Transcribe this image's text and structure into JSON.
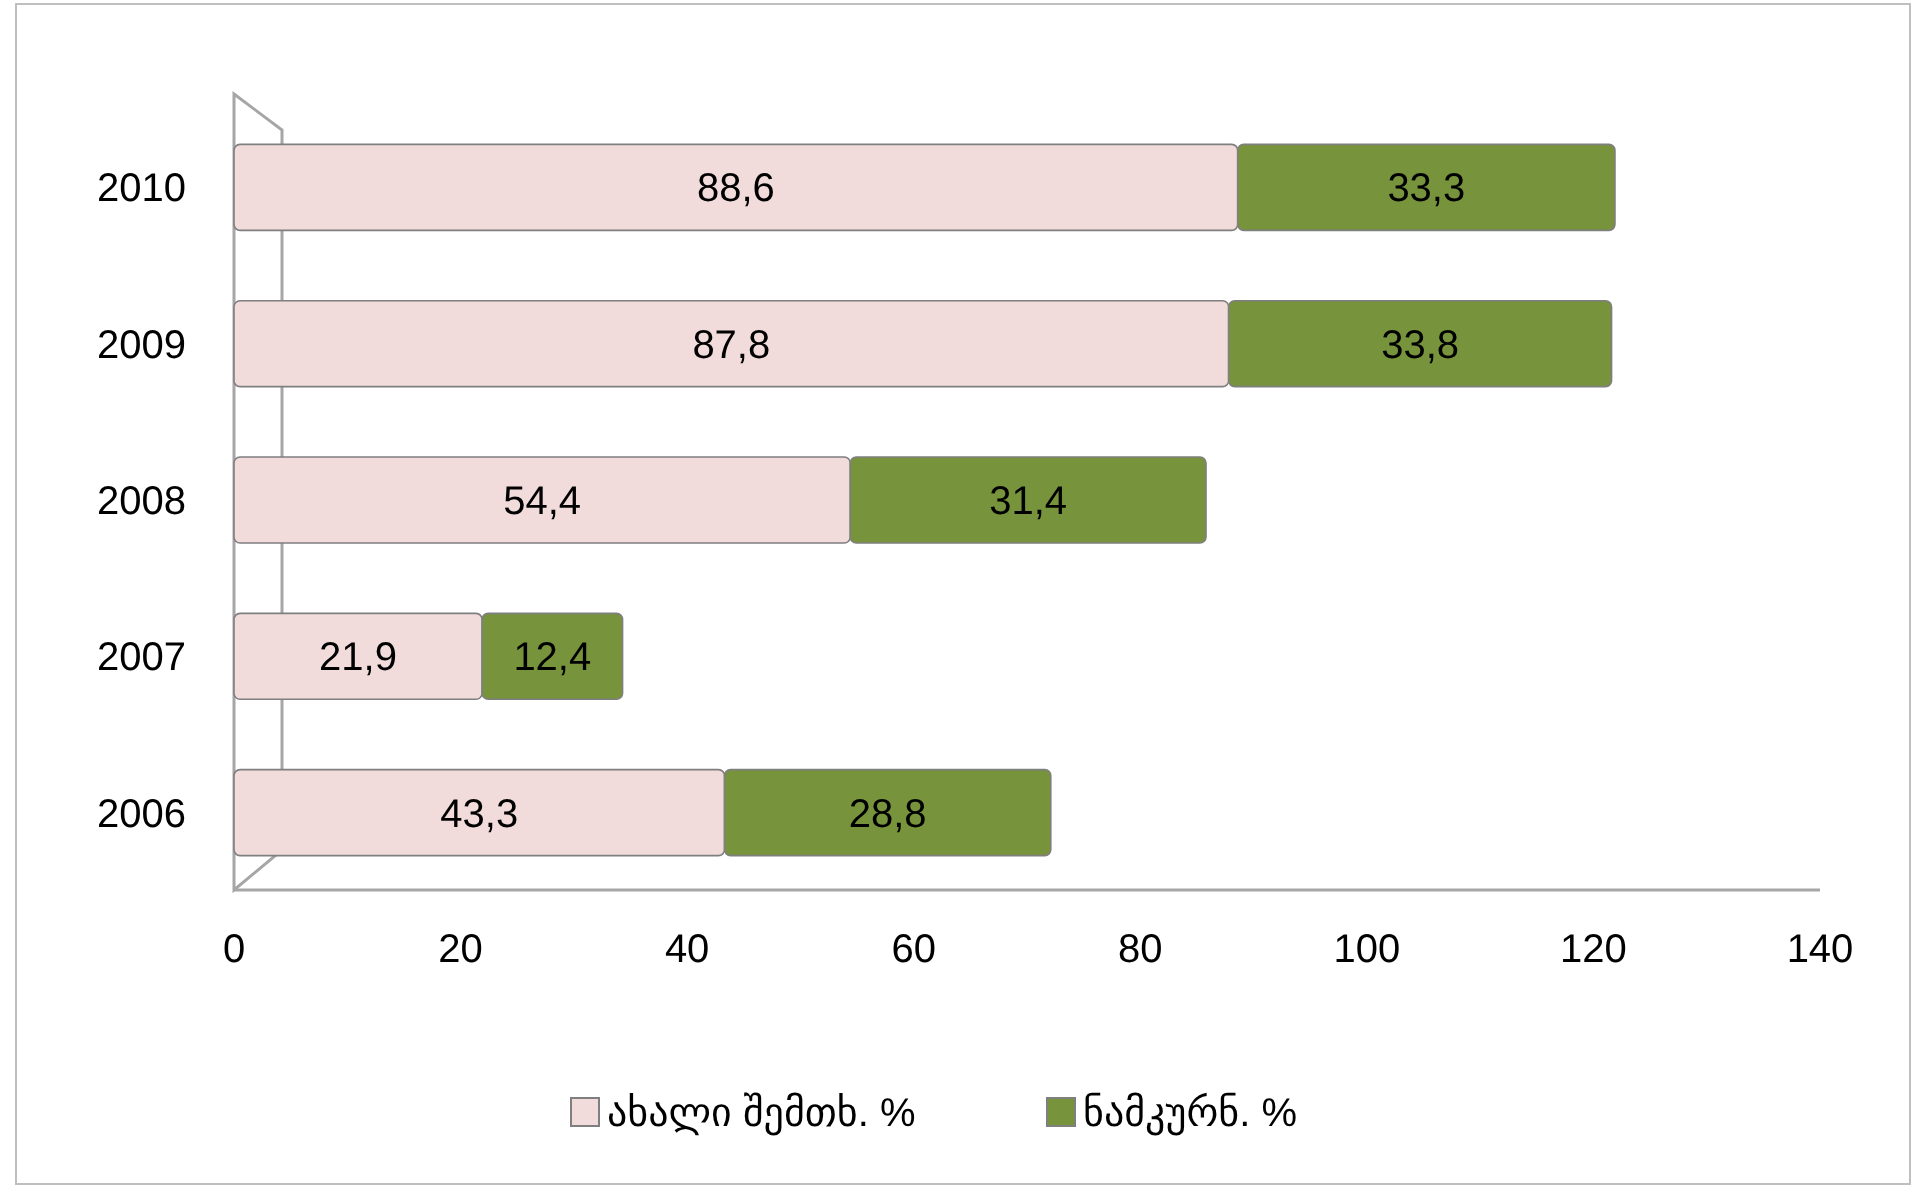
{
  "chart_data": {
    "type": "bar",
    "orientation": "horizontal",
    "stacked": true,
    "categories": [
      "2010",
      "2009",
      "2008",
      "2007",
      "2006"
    ],
    "series": [
      {
        "name": "ახალი შემთხ. %",
        "color": "#f2dcdb",
        "values": [
          88.6,
          87.8,
          54.4,
          21.9,
          43.3
        ],
        "value_labels": [
          "88,6",
          "87,8",
          "54,4",
          "21,9",
          "43,3"
        ]
      },
      {
        "name": "ნამკურნ. %",
        "color": "#77933c",
        "values": [
          33.3,
          33.8,
          31.4,
          12.4,
          28.8
        ],
        "value_labels": [
          "33,3",
          "33,8",
          "31,4",
          "12,4",
          "28,8"
        ]
      }
    ],
    "xlim": [
      0,
      140
    ],
    "xticks": [
      0,
      20,
      40,
      60,
      80,
      100,
      120,
      140
    ],
    "grid": false,
    "legend": "bottom"
  }
}
